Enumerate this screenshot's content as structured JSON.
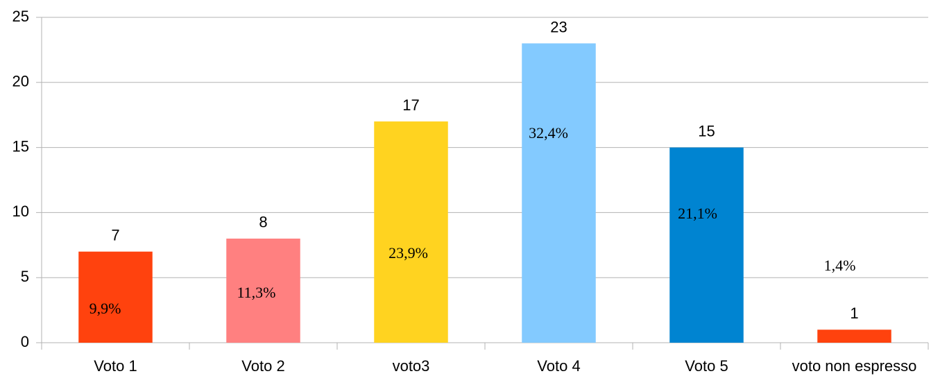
{
  "chart_data": {
    "type": "bar",
    "categories": [
      "Voto 1",
      "Voto 2",
      "voto3",
      "Voto 4",
      "Voto 5",
      "voto non espresso"
    ],
    "values": [
      7,
      8,
      17,
      23,
      15,
      1
    ],
    "colors": [
      "#ff420e",
      "#ff8080",
      "#ffd320",
      "#83caff",
      "#0084d1",
      "#ff420e"
    ],
    "annotations": [
      "9,9%",
      "11,3%",
      "23,9%",
      "32,4%",
      "21,1%",
      "1,4%"
    ],
    "ylim": [
      0,
      25
    ],
    "yticks": [
      0,
      5,
      10,
      15,
      20,
      25
    ],
    "grid": true
  }
}
